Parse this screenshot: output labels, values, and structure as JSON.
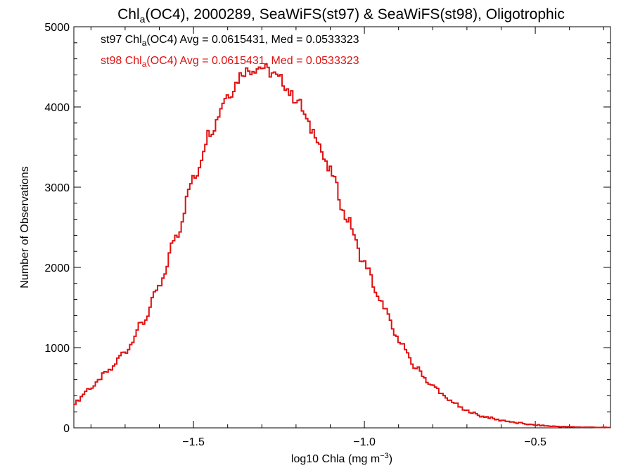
{
  "chart_data": {
    "type": "line",
    "title": {
      "prefix": "Chl",
      "sub": "a",
      "suffix": "(OC4), 2000289, SeaWiFS(st97) & SeaWiFS(st98), Oligotrophic"
    },
    "xlabel": {
      "text": "log10 Chla (mg m",
      "sup": "−3",
      "close": ")"
    },
    "ylabel": "Number of Observations",
    "xlim": [
      -1.85,
      -0.28
    ],
    "ylim": [
      0,
      5000
    ],
    "x_ticks": [
      -1.5,
      -1.0,
      -0.5
    ],
    "x_tick_labels": [
      "−1.5",
      "−1.0",
      "−0.5"
    ],
    "y_ticks": [
      0,
      1000,
      2000,
      3000,
      4000,
      5000
    ],
    "y_tick_labels": [
      "0",
      "1000",
      "2000",
      "3000",
      "4000",
      "5000"
    ],
    "legend": [
      {
        "pre": "st97 Chl",
        "sub": "a",
        "post": "(OC4) Avg = 0.0615431, Med = 0.0533323",
        "color": "#000000"
      },
      {
        "pre": "st98 Chl",
        "sub": "a",
        "post": "(OC4) Avg = 0.0615431, Med = 0.0533323",
        "color": "#e01010"
      }
    ],
    "series": [
      {
        "name": "st98",
        "color": "#e01010",
        "step": true,
        "x": [
          -1.85,
          -1.8,
          -1.75,
          -1.7,
          -1.65,
          -1.6,
          -1.55,
          -1.5,
          -1.45,
          -1.4,
          -1.35,
          -1.3,
          -1.27,
          -1.25,
          -1.2,
          -1.15,
          -1.1,
          -1.05,
          -1.0,
          -0.95,
          -0.9,
          -0.85,
          -0.8,
          -0.75,
          -0.7,
          -0.65,
          -0.6,
          -0.55,
          -0.5,
          -0.45,
          -0.4,
          -0.35,
          -0.3,
          -0.28
        ],
        "y": [
          310,
          500,
          700,
          950,
          1300,
          1750,
          2400,
          3100,
          3700,
          4150,
          4450,
          4500,
          4420,
          4350,
          4100,
          3700,
          3200,
          2600,
          2050,
          1550,
          1100,
          750,
          520,
          340,
          210,
          140,
          95,
          60,
          35,
          20,
          12,
          8,
          5,
          4
        ]
      }
    ]
  }
}
